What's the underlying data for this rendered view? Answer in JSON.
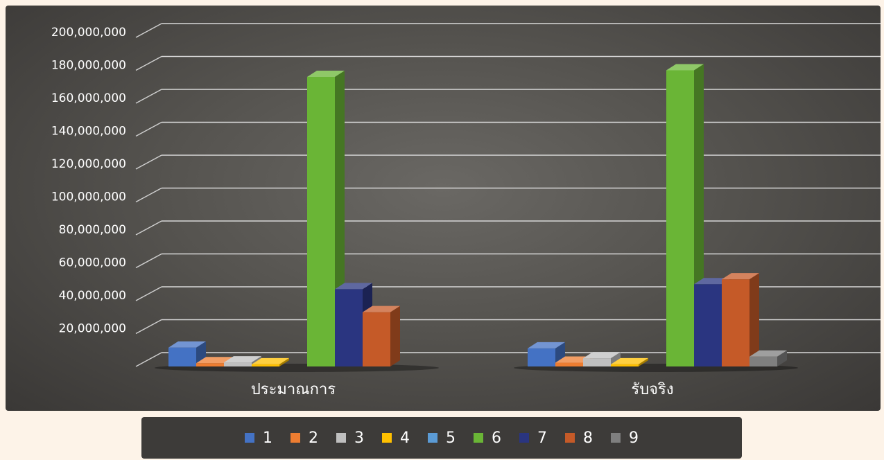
{
  "chart_data": {
    "type": "bar",
    "categories": [
      "ประมาณการ",
      "รับจริง"
    ],
    "series": [
      {
        "name": "1",
        "color": "#4472c4",
        "values": [
          11500000,
          11000000
        ]
      },
      {
        "name": "2",
        "color": "#ed7d31",
        "values": [
          2000000,
          2300000
        ]
      },
      {
        "name": "3",
        "color": "#bfbfbf",
        "values": [
          2500000,
          5000000
        ]
      },
      {
        "name": "4",
        "color": "#ffc000",
        "values": [
          1300000,
          1300000
        ]
      },
      {
        "name": "5",
        "color": "#5b9bd5",
        "values": [
          0,
          0
        ]
      },
      {
        "name": "6",
        "color": "#6ab536",
        "values": [
          176000000,
          180000000
        ]
      },
      {
        "name": "7",
        "color": "#2a3580",
        "values": [
          47000000,
          50000000
        ]
      },
      {
        "name": "8",
        "color": "#c55a28",
        "values": [
          33000000,
          53000000
        ]
      },
      {
        "name": "9",
        "color": "#7f7f7f",
        "values": [
          0,
          6000000
        ]
      }
    ],
    "yticks": [
      "200,000,000",
      "180,000,000",
      "160,000,000",
      "140,000,000",
      "120,000,000",
      "100,000,000",
      "80,000,000",
      "60,000,000",
      "40,000,000",
      "20,000,000"
    ],
    "ylim": [
      0,
      200000000
    ],
    "grid": true,
    "legend_position": "bottom",
    "background": "#55534f",
    "text_color": "#ffffff"
  }
}
